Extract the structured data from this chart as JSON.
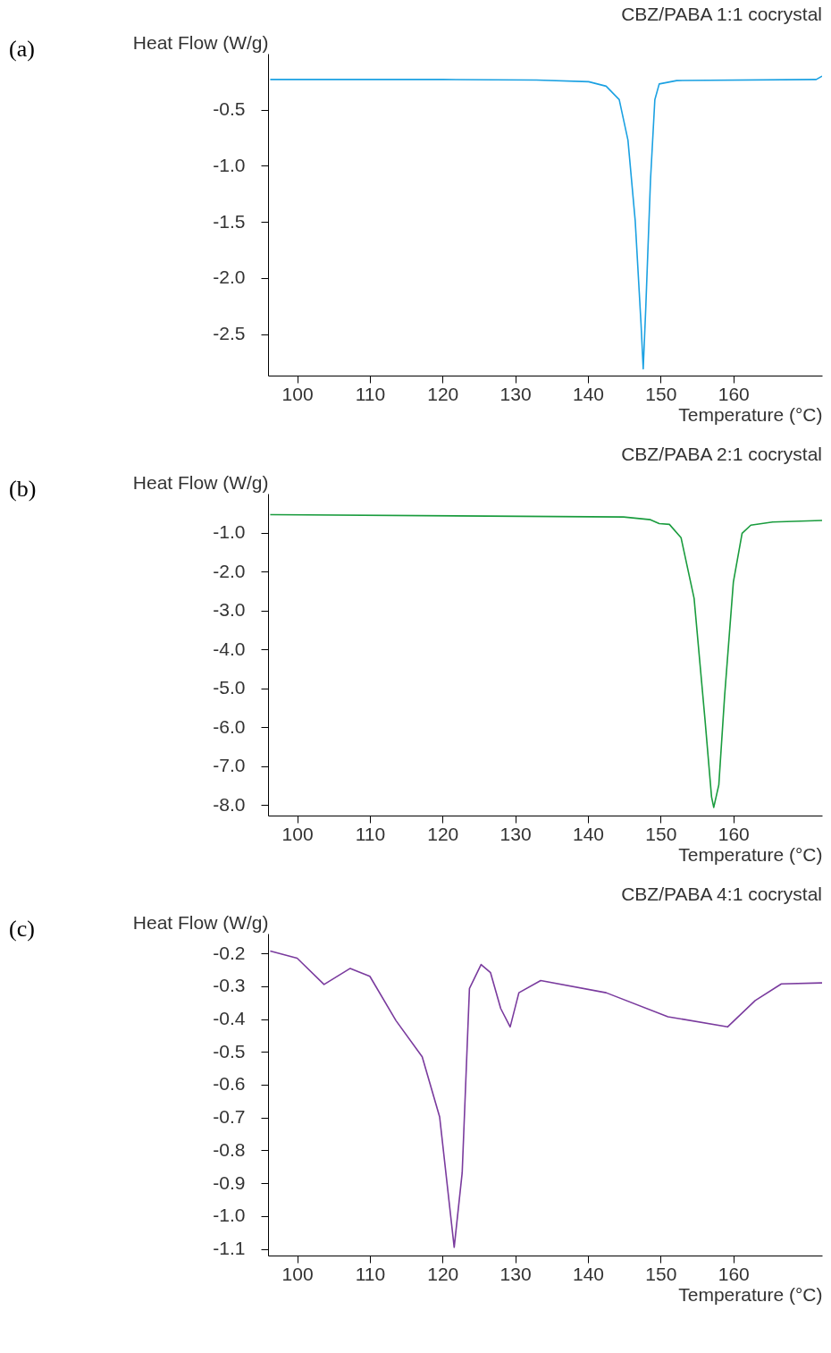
{
  "chart_data": [
    {
      "type": "line",
      "title": "CBZ/PABA 1:1 cocrystal",
      "xlabel": "Temperature (°C)",
      "ylabel": "Heat Flow (W/g)",
      "annotations": [
        "(a)"
      ],
      "grid": false,
      "marker": "none",
      "line_style": "solid",
      "xlim": [
        96,
        172.2
      ],
      "xticks": [
        100,
        110,
        120,
        130,
        140,
        150,
        160
      ],
      "ylim": [
        -2.87,
        0
      ],
      "yticks": [
        -0.5,
        {
          "value": -1,
          "label": "-1.0"
        },
        -1.5,
        {
          "value": -2,
          "label": "-2.0"
        },
        -2.5
      ],
      "series": [
        {
          "color": "#1ba1e2",
          "x": [
            96.3,
            120,
            132.9,
            140.1,
            142.5,
            144.3,
            145.5,
            146.5,
            147.3,
            147.6,
            147.95,
            148.6,
            149.2,
            149.8,
            152.2,
            171.4,
            172.2
          ],
          "values": [
            -0.23,
            -0.23,
            -0.235,
            -0.25,
            -0.29,
            -0.41,
            -0.77,
            -1.49,
            -2.41,
            -2.81,
            -2.27,
            -1.13,
            -0.41,
            -0.27,
            -0.24,
            -0.23,
            -0.2
          ]
        }
      ]
    },
    {
      "type": "line",
      "title": "CBZ/PABA 2:1 cocrystal",
      "xlabel": "Temperature (°C)",
      "ylabel": "Heat Flow (W/g)",
      "annotations": [
        "(b)"
      ],
      "grid": false,
      "marker": "none",
      "line_style": "solid",
      "xlim": [
        96,
        172.2
      ],
      "xticks": [
        100,
        110,
        120,
        130,
        140,
        150,
        160
      ],
      "ylim": [
        -8.27,
        0
      ],
      "yticks": [
        {
          "value": -1,
          "label": "-1.0"
        },
        {
          "value": -2,
          "label": "-2.0"
        },
        {
          "value": -3,
          "label": "-3.0"
        },
        {
          "value": -4,
          "label": "-4.0"
        },
        {
          "value": -5,
          "label": "-5.0"
        },
        {
          "value": -6,
          "label": "-6.0"
        },
        {
          "value": -7,
          "label": "-7.0"
        },
        {
          "value": -8,
          "label": "-8.0"
        }
      ],
      "series": [
        {
          "color": "#1a9c3e",
          "x": [
            96.3,
            144.9,
            148.6,
            149.8,
            151.2,
            152.8,
            154.6,
            156.1,
            157.0,
            157.3,
            158.0,
            158.8,
            160.0,
            161.2,
            162.4,
            165.4,
            172.2
          ],
          "values": [
            -0.54,
            -0.6,
            -0.67,
            -0.77,
            -0.79,
            -1.13,
            -2.69,
            -5.81,
            -7.79,
            -8.06,
            -7.48,
            -5.19,
            -2.27,
            -1.02,
            -0.81,
            -0.73,
            -0.69
          ]
        }
      ]
    },
    {
      "type": "line",
      "title": "CBZ/PABA 4:1 cocrystal",
      "xlabel": "Temperature (°C)",
      "ylabel": "Heat Flow (W/g)",
      "annotations": [
        "(c)"
      ],
      "grid": false,
      "marker": "none",
      "line_style": "solid",
      "xlim": [
        96,
        172.2
      ],
      "xticks": [
        100,
        110,
        120,
        130,
        140,
        150,
        160
      ],
      "ylim": [
        -1.12,
        -0.14
      ],
      "yticks": [
        -0.2,
        -0.3,
        -0.4,
        -0.5,
        -0.6,
        -0.7,
        -0.8,
        -0.9,
        {
          "value": -1,
          "label": "-1.0"
        },
        -1.1
      ],
      "series": [
        {
          "color": "#7a3b9e",
          "x": [
            96.3,
            100,
            103.7,
            107.3,
            110,
            113.6,
            117.2,
            119.6,
            121.6,
            122.7,
            123.7,
            125.3,
            126.6,
            128,
            129.3,
            130.5,
            133.5,
            142.5,
            151,
            159.2,
            163,
            166.6,
            172.2
          ],
          "values": [
            -0.193,
            -0.215,
            -0.295,
            -0.246,
            -0.27,
            -0.405,
            -0.515,
            -0.698,
            -1.095,
            -0.868,
            -0.307,
            -0.234,
            -0.259,
            -0.368,
            -0.424,
            -0.32,
            -0.283,
            -0.32,
            -0.393,
            -0.424,
            -0.344,
            -0.293,
            -0.29
          ]
        }
      ]
    }
  ]
}
